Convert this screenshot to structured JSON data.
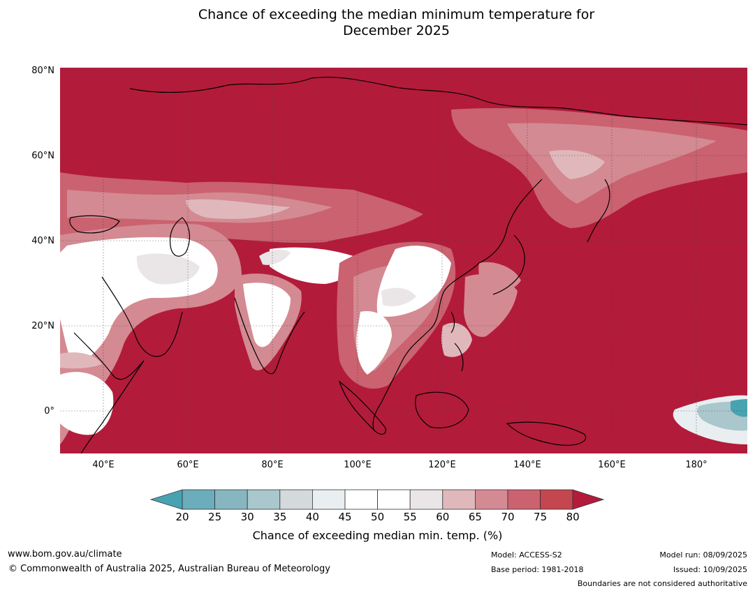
{
  "title_line1": "Chance of exceeding the median minimum temperature for",
  "title_line2": "December 2025",
  "map": {
    "y_ticks": [
      "80°N",
      "60°N",
      "40°N",
      "20°N",
      "0°"
    ],
    "x_ticks": [
      "40°E",
      "60°E",
      "80°E",
      "100°E",
      "120°E",
      "140°E",
      "160°E",
      "180°"
    ],
    "colors": {
      "deep_red": "#b31b3a",
      "red75": "#c4464f",
      "red70": "#ca6270",
      "red65": "#d48a92",
      "pink60": "#e0b8bc",
      "light55": "#eae6e7",
      "white": "#ffffff",
      "grey35": "#d4d9db",
      "teal30": "#a9c7cc",
      "teal25": "#87b6c1",
      "teal20": "#6badba",
      "teal_low": "#48a3b1"
    }
  },
  "colorbar": {
    "ticks": [
      "20",
      "25",
      "30",
      "35",
      "40",
      "45",
      "50",
      "55",
      "60",
      "65",
      "70",
      "75",
      "80"
    ],
    "segments": [
      "#6badba",
      "#87b6c1",
      "#a9c7cc",
      "#d4d9db",
      "#e9eef0",
      "#ffffff",
      "#ffffff",
      "#eae6e7",
      "#e0b8bc",
      "#d48a92",
      "#ca6270",
      "#c4464f"
    ],
    "under_color": "#48a3b1",
    "over_color": "#b31b3a",
    "label": "Chance of exceeding median min. temp. (%)"
  },
  "footer": {
    "website": "www.bom.gov.au/climate",
    "copyright": "© Commonwealth of Australia 2025, Australian Bureau of Meteorology",
    "model": "Model: ACCESS-S2",
    "base_period": "Base period: 1981-2018",
    "model_run": "Model run: 08/09/2025",
    "issued": "Issued: 10/09/2025",
    "boundaries": "Boundaries are not considered authoritative"
  }
}
